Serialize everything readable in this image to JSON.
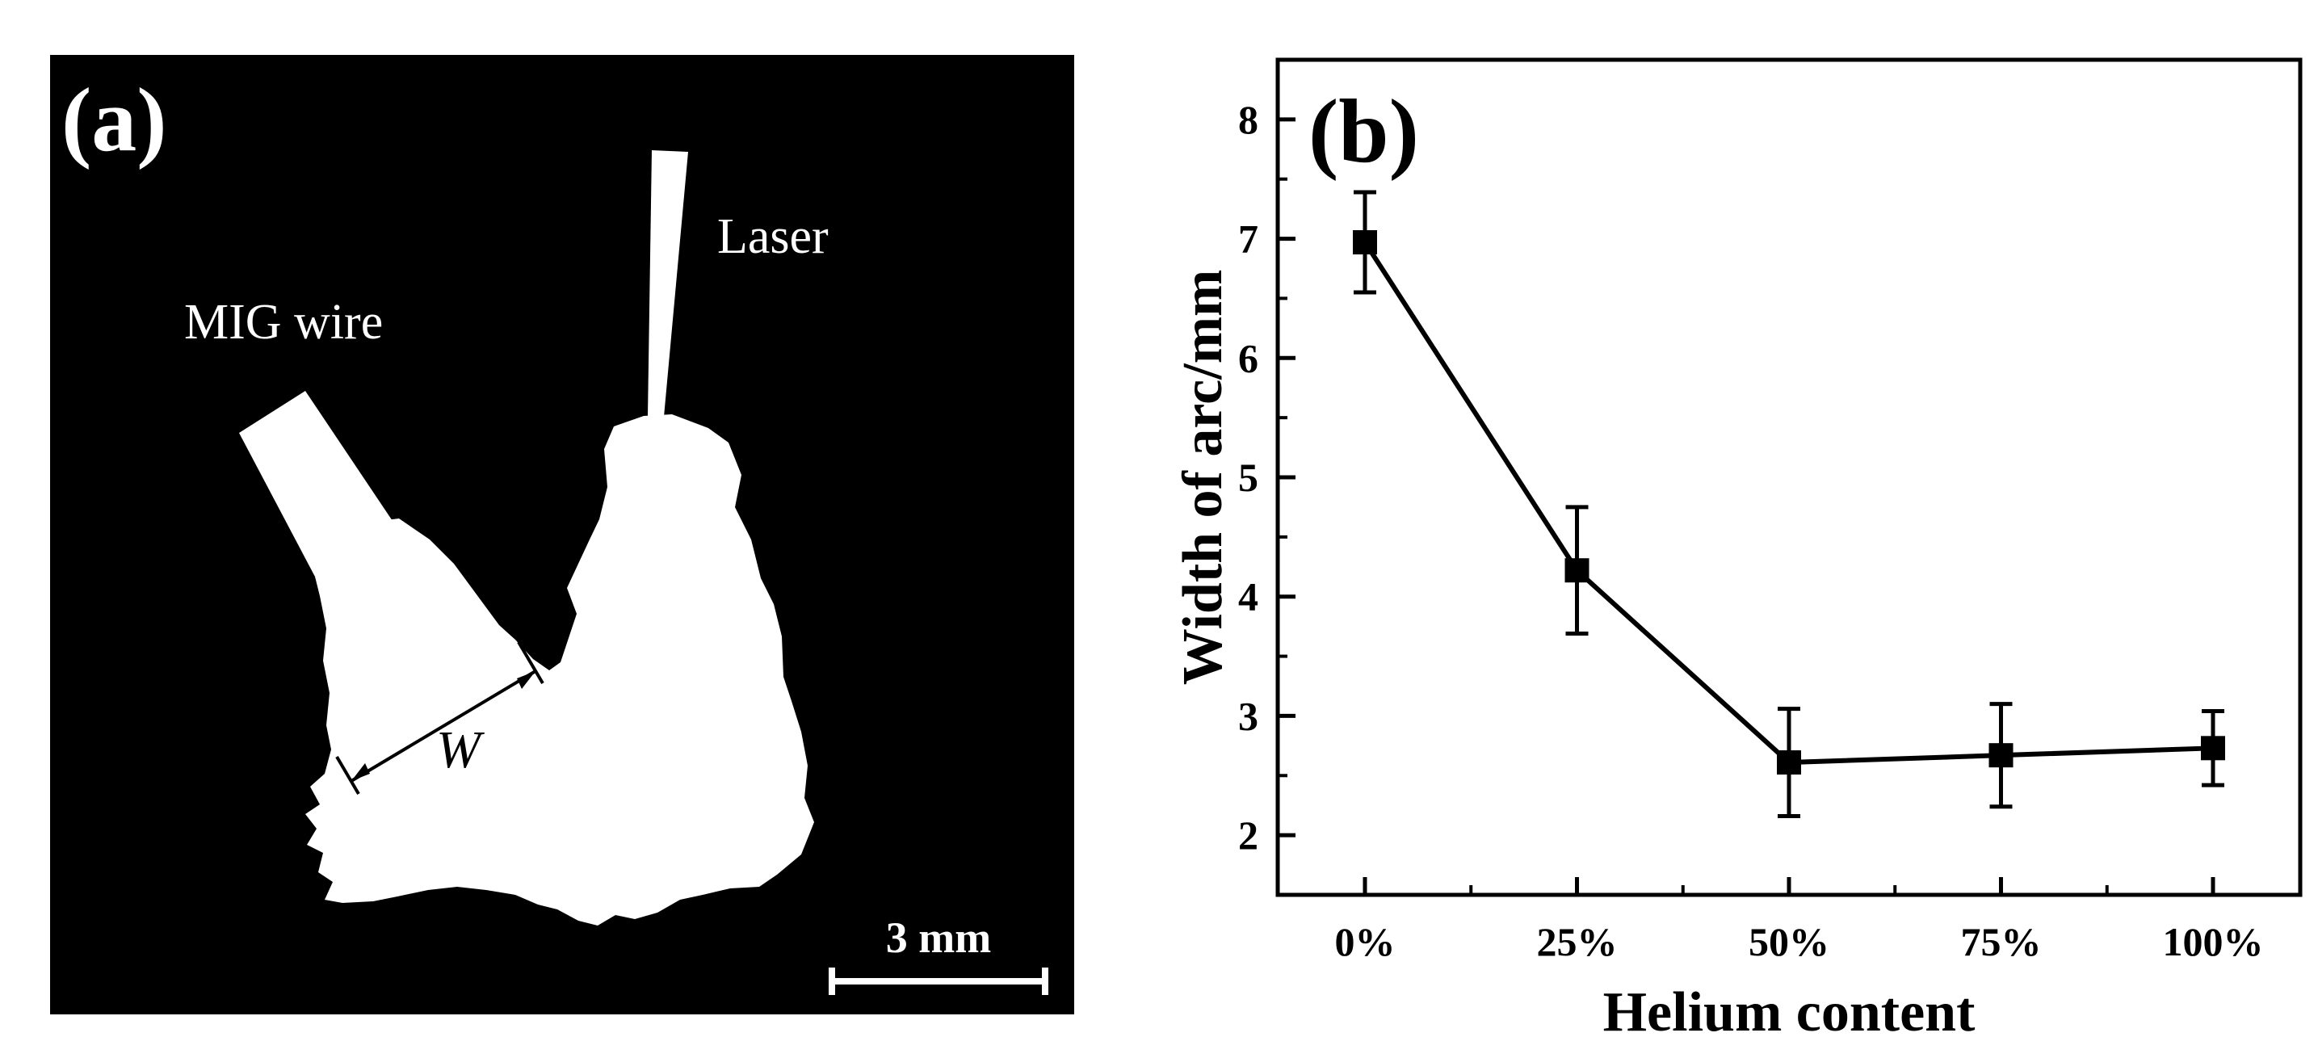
{
  "panel_a": {
    "label": "(a)",
    "mig_label": "MIG wire",
    "laser_label": "Laser",
    "width_symbol": "W",
    "scale_bar_label": "3 mm"
  },
  "chart_data": {
    "type": "line",
    "panel_label": "(b)",
    "title": "",
    "xlabel": "Helium content",
    "ylabel": "Width of arc/mm",
    "categories": [
      "0%",
      "25%",
      "50%",
      "75%",
      "100%"
    ],
    "series": [
      {
        "values": [
          6.97,
          4.22,
          2.61,
          2.67,
          2.73
        ],
        "error": [
          0.42,
          0.53,
          0.45,
          0.43,
          0.31
        ],
        "marker": "square",
        "color": "#000000"
      }
    ],
    "ylim": [
      1.5,
      8.5
    ],
    "yticks": [
      2,
      3,
      4,
      5,
      6,
      7,
      8
    ],
    "grid": false,
    "legend": "none"
  }
}
